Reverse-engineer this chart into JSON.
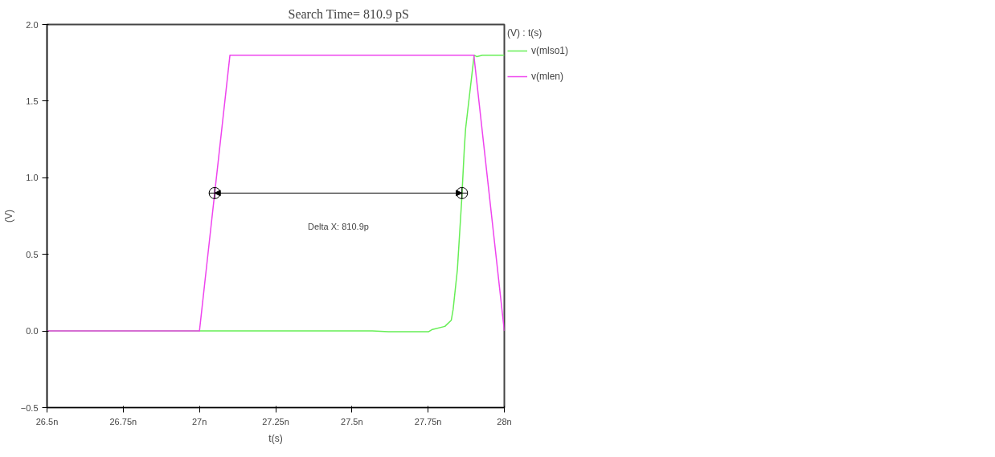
{
  "chart_data": {
    "type": "line",
    "title": "Search Time= 810.9 pS",
    "xlabel": "t(s)",
    "ylabel": "(V)",
    "legend_title": "(V) : t(s)",
    "legend": "right",
    "grid": false,
    "xlim": [
      26.5,
      28
    ],
    "xticks": [
      {
        "value": 26.5,
        "label": "26.5n"
      },
      {
        "value": 26.75,
        "label": "26.75n"
      },
      {
        "value": 27,
        "label": "27n"
      },
      {
        "value": 27.25,
        "label": "27.25n"
      },
      {
        "value": 27.5,
        "label": "27.5n"
      },
      {
        "value": 27.75,
        "label": "27.75n"
      },
      {
        "value": 28,
        "label": "28n"
      }
    ],
    "ylim": [
      -0.5,
      2.0
    ],
    "yticks": [
      -0.5,
      {
        "value": 0,
        "label": "0.0"
      },
      0.5,
      {
        "value": 1,
        "label": "1.0"
      },
      1.5,
      {
        "value": 2,
        "label": "2.0"
      }
    ],
    "series": [
      {
        "name": "v(mlso1)",
        "color": "#66ee55",
        "x": [
          26.5,
          27.567,
          27.62,
          27.751,
          27.764,
          27.805,
          27.826,
          27.832,
          27.846,
          27.86,
          27.869,
          27.873,
          27.901,
          27.91,
          27.928,
          28.0
        ],
        "values": [
          0,
          0,
          -0.005,
          -0.005,
          0.01,
          0.03,
          0.07,
          0.14,
          0.4,
          0.85,
          1.2,
          1.32,
          1.8,
          1.79,
          1.8,
          1.8
        ]
      },
      {
        "name": "v(mlen)",
        "color": "#ee44ee",
        "x": [
          26.5,
          27.0,
          27.1,
          27.9,
          28.0
        ],
        "values": [
          0,
          0,
          1.8,
          1.8,
          0
        ]
      },
      {
        "type": "scatter",
        "marker": "circle",
        "color": "#000000",
        "x": [
          27.05,
          27.861
        ],
        "values": [
          0.9,
          0.9
        ]
      }
    ],
    "annotations": [
      "Delta X: 810.9p"
    ]
  }
}
